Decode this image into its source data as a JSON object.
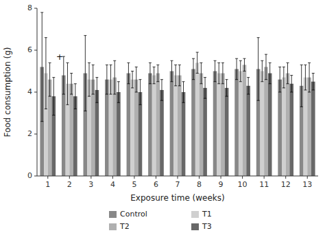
{
  "chart_data": {
    "type": "bar",
    "categories": [
      "1",
      "2",
      "3",
      "4",
      "5",
      "6",
      "7",
      "8",
      "9",
      "10",
      "11",
      "12",
      "13"
    ],
    "series": [
      {
        "name": "Control",
        "color": "#888888",
        "values": [
          5.2,
          4.8,
          4.9,
          4.6,
          4.9,
          4.9,
          5.0,
          5.1,
          5.0,
          5.1,
          5.1,
          4.6,
          4.3
        ],
        "errors": [
          2.6,
          0.9,
          1.8,
          0.7,
          0.5,
          0.5,
          0.5,
          0.5,
          0.5,
          0.5,
          1.5,
          0.6,
          1.0
        ]
      },
      {
        "name": "T1",
        "color": "#d0d0d0",
        "values": [
          4.9,
          4.4,
          4.6,
          4.6,
          4.6,
          4.8,
          4.8,
          5.4,
          4.9,
          5.0,
          5.0,
          4.7,
          4.7
        ],
        "errors": [
          1.7,
          1.0,
          0.8,
          0.7,
          0.4,
          0.4,
          0.5,
          0.5,
          0.5,
          0.5,
          0.5,
          0.5,
          0.6
        ]
      },
      {
        "name": "T2",
        "color": "#b0b0b0",
        "values": [
          4.6,
          4.4,
          4.6,
          4.7,
          4.6,
          4.9,
          4.8,
          4.9,
          4.9,
          5.3,
          5.2,
          4.9,
          4.7
        ],
        "errors": [
          0.8,
          0.5,
          0.7,
          0.8,
          0.6,
          0.4,
          0.5,
          0.5,
          0.5,
          0.3,
          0.6,
          0.5,
          0.7
        ]
      },
      {
        "name": "T3",
        "color": "#686868",
        "values": [
          3.8,
          3.8,
          4.1,
          4.0,
          4.0,
          4.1,
          4.0,
          4.2,
          4.2,
          4.3,
          4.9,
          4.4,
          4.5
        ],
        "errors": [
          0.9,
          0.6,
          0.6,
          0.5,
          0.6,
          0.5,
          0.5,
          0.5,
          0.4,
          0.4,
          0.5,
          0.4,
          0.4
        ]
      }
    ],
    "xlabel": "Exposure time (weeks)",
    "ylabel": "Food consumption (g)",
    "ylim": [
      0,
      8
    ],
    "yticks": [
      0,
      2,
      4,
      6,
      8
    ],
    "grid": false,
    "legend": "bottom",
    "annotations": [
      {
        "text": "+",
        "category": "2",
        "y": 5.55
      }
    ]
  }
}
